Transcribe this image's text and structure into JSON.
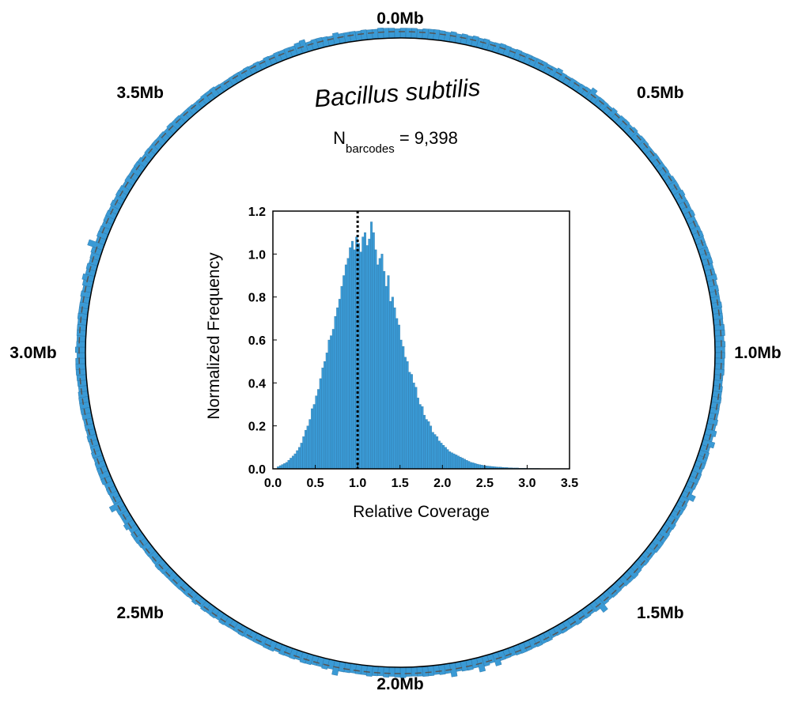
{
  "chart_data": [
    {
      "type": "bar",
      "subtype": "circular-genome-coverage",
      "title": "Bacillus subtilis",
      "annotation": {
        "label_main": "N",
        "label_sub": "barcodes",
        "label_rest": " = 9,398"
      },
      "position_labels": [
        "0.0Mb",
        "0.5Mb",
        "1.0Mb",
        "1.5Mb",
        "2.0Mb",
        "2.5Mb",
        "3.0Mb",
        "3.5Mb"
      ],
      "position_values_mb": [
        0.0,
        0.5,
        1.0,
        1.5,
        2.0,
        2.5,
        3.0,
        3.5
      ],
      "genome_length_mb": 4.0,
      "reference_relative_coverage": 1.0,
      "bar_color": "#3a9ad5",
      "bar_edge_color": "#2a6f9e",
      "bins_per_mb": 90
    },
    {
      "type": "bar",
      "subtype": "histogram",
      "xlabel": "Relative Coverage",
      "ylabel": "Normalized Frequency",
      "xlim": [
        0.0,
        3.5
      ],
      "ylim": [
        0.0,
        1.2
      ],
      "xticks": [
        "0.0",
        "0.5",
        "1.0",
        "1.5",
        "2.0",
        "2.5",
        "3.0",
        "3.5"
      ],
      "yticks": [
        "0.0",
        "0.2",
        "0.4",
        "0.6",
        "0.8",
        "1.0",
        "1.2"
      ],
      "highlight_tick": "1.0",
      "highlight_color": "#e3120b",
      "reference_line_x": 1.0,
      "bin_width": 0.025,
      "bin_start": 0.05,
      "bar_color": "#3a9ad5",
      "values": [
        0.01,
        0.015,
        0.02,
        0.025,
        0.03,
        0.04,
        0.05,
        0.06,
        0.07,
        0.085,
        0.1,
        0.12,
        0.15,
        0.18,
        0.2,
        0.23,
        0.28,
        0.3,
        0.34,
        0.37,
        0.42,
        0.47,
        0.5,
        0.54,
        0.6,
        0.62,
        0.65,
        0.71,
        0.75,
        0.79,
        0.85,
        0.9,
        0.95,
        0.98,
        1.03,
        1.06,
        1.02,
        1.08,
        1.05,
        1.01,
        1.08,
        1.1,
        1.04,
        1.07,
        1.15,
        1.1,
        1.02,
        0.95,
        0.98,
        1.0,
        0.92,
        0.85,
        0.9,
        0.78,
        0.8,
        0.75,
        0.7,
        0.67,
        0.6,
        0.57,
        0.52,
        0.5,
        0.45,
        0.44,
        0.4,
        0.38,
        0.33,
        0.3,
        0.29,
        0.25,
        0.23,
        0.22,
        0.2,
        0.17,
        0.16,
        0.15,
        0.13,
        0.12,
        0.11,
        0.1,
        0.09,
        0.08,
        0.075,
        0.07,
        0.065,
        0.06,
        0.055,
        0.05,
        0.045,
        0.04,
        0.035,
        0.03,
        0.028,
        0.025,
        0.022,
        0.02,
        0.018,
        0.016,
        0.014,
        0.013,
        0.012,
        0.011,
        0.01,
        0.009,
        0.008,
        0.008,
        0.007,
        0.006,
        0.006,
        0.005,
        0.005,
        0.004,
        0.004,
        0.004,
        0.003,
        0.003,
        0.003,
        0.003,
        0.002,
        0.002,
        0.002,
        0.002,
        0.002,
        0.002,
        0.001,
        0.001,
        0.001,
        0.001,
        0.001,
        0.001,
        0.001,
        0.001,
        0.001,
        0.001
      ]
    }
  ]
}
